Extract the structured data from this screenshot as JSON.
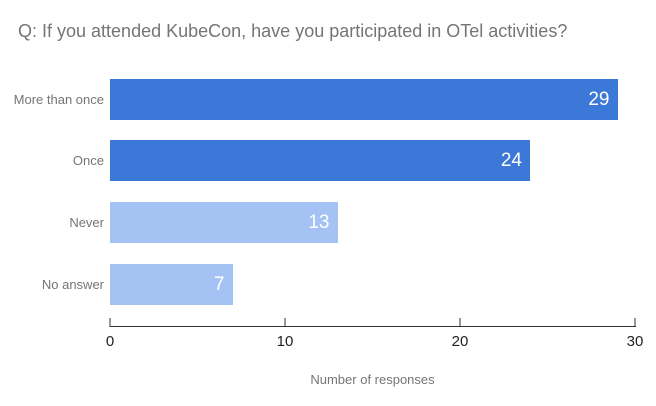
{
  "title": "Q: If you attended KubeCon, have you participated in OTel activities?",
  "colors": {
    "background": "#ffffff",
    "title_text": "#757575",
    "category_text": "#757575",
    "axis_line": "#333333",
    "tick_text": "#222222",
    "axis_title_text": "#757575",
    "bar_dark_blue": "#3c78d8",
    "bar_light_blue": "#a4c2f4",
    "value_text": "#ffffff"
  },
  "chart_data": {
    "type": "bar",
    "orientation": "horizontal",
    "title": "Q: If you attended KubeCon, have you participated in OTel activities?",
    "categories": [
      "More than once",
      "Once",
      "Never",
      "No answer"
    ],
    "values": [
      29,
      24,
      13,
      7
    ],
    "bar_colors": [
      "#3c78d8",
      "#3c78d8",
      "#a4c2f4",
      "#a4c2f4"
    ],
    "value_labels_inside_bars": true,
    "xlabel": "Number of responses",
    "ylabel": "",
    "xlim": [
      0,
      30
    ],
    "xticks": [
      0,
      10,
      20,
      30
    ],
    "grid": false,
    "legend": "none"
  }
}
